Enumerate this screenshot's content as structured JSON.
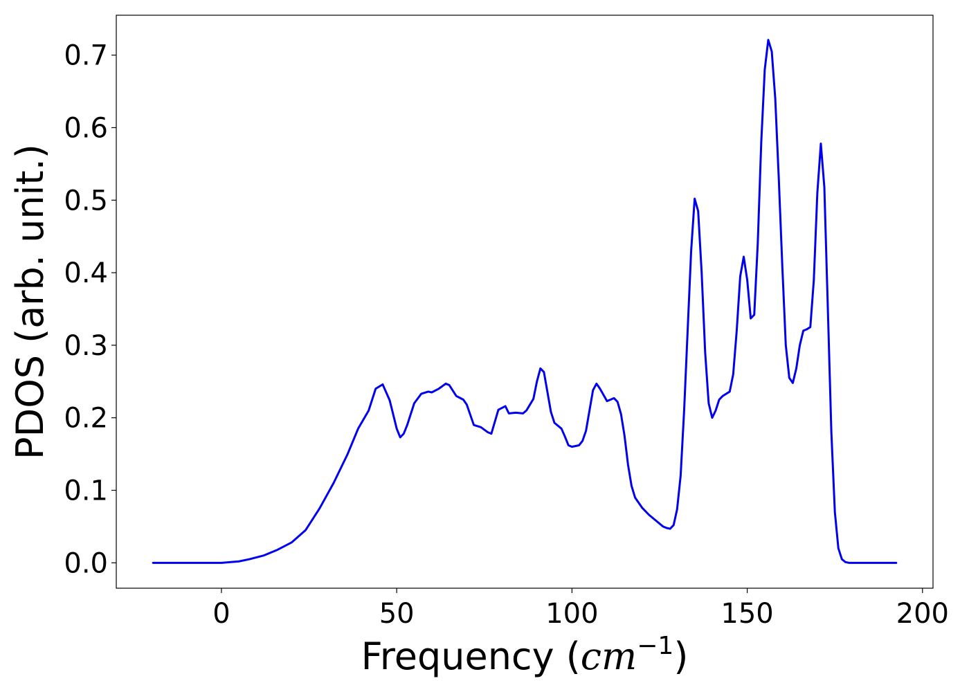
{
  "chart_data": {
    "type": "line",
    "title": "",
    "xlabel_main": "Frequency (",
    "xlabel_unit_base": "cm",
    "xlabel_unit_exp": "−1",
    "xlabel_close": ")",
    "ylabel": "PDOS (arb. unit.)",
    "xlim": [
      -30,
      203
    ],
    "ylim": [
      -0.035,
      0.755
    ],
    "xticks": [
      0,
      50,
      100,
      150,
      200
    ],
    "xtick_labels": [
      "0",
      "50",
      "100",
      "150",
      "200"
    ],
    "yticks": [
      0.0,
      0.1,
      0.2,
      0.3,
      0.4,
      0.5,
      0.6,
      0.7
    ],
    "ytick_labels": [
      "0.0",
      "0.1",
      "0.2",
      "0.3",
      "0.4",
      "0.5",
      "0.6",
      "0.7"
    ],
    "grid": false,
    "line_color": "#0000ee",
    "series": [
      {
        "x": [
          -19.5,
          -10,
          0,
          5,
          8,
          12,
          16,
          20,
          24,
          28,
          32,
          36,
          39,
          42,
          44,
          46,
          47,
          48,
          50,
          51,
          52,
          53,
          55,
          57,
          59,
          60,
          62,
          64,
          65,
          67,
          69,
          70,
          72,
          74,
          76,
          77,
          79,
          81,
          82,
          84,
          86,
          87,
          89,
          90,
          91,
          92,
          94,
          95,
          97,
          98,
          99,
          100,
          102,
          103,
          104,
          106,
          107,
          108,
          110,
          111,
          112,
          113,
          114,
          115,
          116,
          117,
          118,
          120,
          122,
          124,
          126,
          127,
          128,
          129,
          130,
          131,
          132,
          133,
          134,
          135,
          136,
          137,
          138,
          139,
          140,
          141,
          142,
          143,
          145,
          146,
          147,
          148,
          149,
          150,
          151,
          152,
          153,
          154,
          155,
          156,
          157,
          158,
          159,
          160,
          161,
          162,
          163,
          164,
          165,
          166,
          167,
          168,
          169,
          170,
          171,
          172,
          173,
          174,
          175,
          176,
          177,
          178,
          179,
          180,
          182,
          185,
          192.5
        ],
        "y": [
          0.0,
          0.0,
          0.0,
          0.002,
          0.005,
          0.01,
          0.018,
          0.028,
          0.045,
          0.075,
          0.11,
          0.15,
          0.185,
          0.21,
          0.24,
          0.246,
          0.235,
          0.224,
          0.185,
          0.173,
          0.178,
          0.19,
          0.22,
          0.233,
          0.236,
          0.235,
          0.24,
          0.247,
          0.245,
          0.23,
          0.225,
          0.218,
          0.19,
          0.187,
          0.18,
          0.178,
          0.211,
          0.216,
          0.206,
          0.207,
          0.206,
          0.21,
          0.226,
          0.25,
          0.268,
          0.263,
          0.208,
          0.193,
          0.185,
          0.174,
          0.162,
          0.16,
          0.162,
          0.168,
          0.182,
          0.238,
          0.247,
          0.24,
          0.223,
          0.225,
          0.227,
          0.222,
          0.205,
          0.175,
          0.135,
          0.106,
          0.09,
          0.076,
          0.066,
          0.058,
          0.05,
          0.048,
          0.047,
          0.052,
          0.074,
          0.12,
          0.21,
          0.32,
          0.43,
          0.502,
          0.485,
          0.4,
          0.29,
          0.22,
          0.2,
          0.21,
          0.225,
          0.23,
          0.236,
          0.26,
          0.32,
          0.395,
          0.422,
          0.39,
          0.337,
          0.342,
          0.44,
          0.58,
          0.68,
          0.721,
          0.705,
          0.64,
          0.53,
          0.41,
          0.3,
          0.255,
          0.248,
          0.268,
          0.3,
          0.32,
          0.322,
          0.325,
          0.39,
          0.51,
          0.578,
          0.518,
          0.35,
          0.18,
          0.07,
          0.02,
          0.005,
          0.001,
          0.0,
          0.0,
          0.0,
          0.0,
          0.0
        ]
      }
    ]
  }
}
